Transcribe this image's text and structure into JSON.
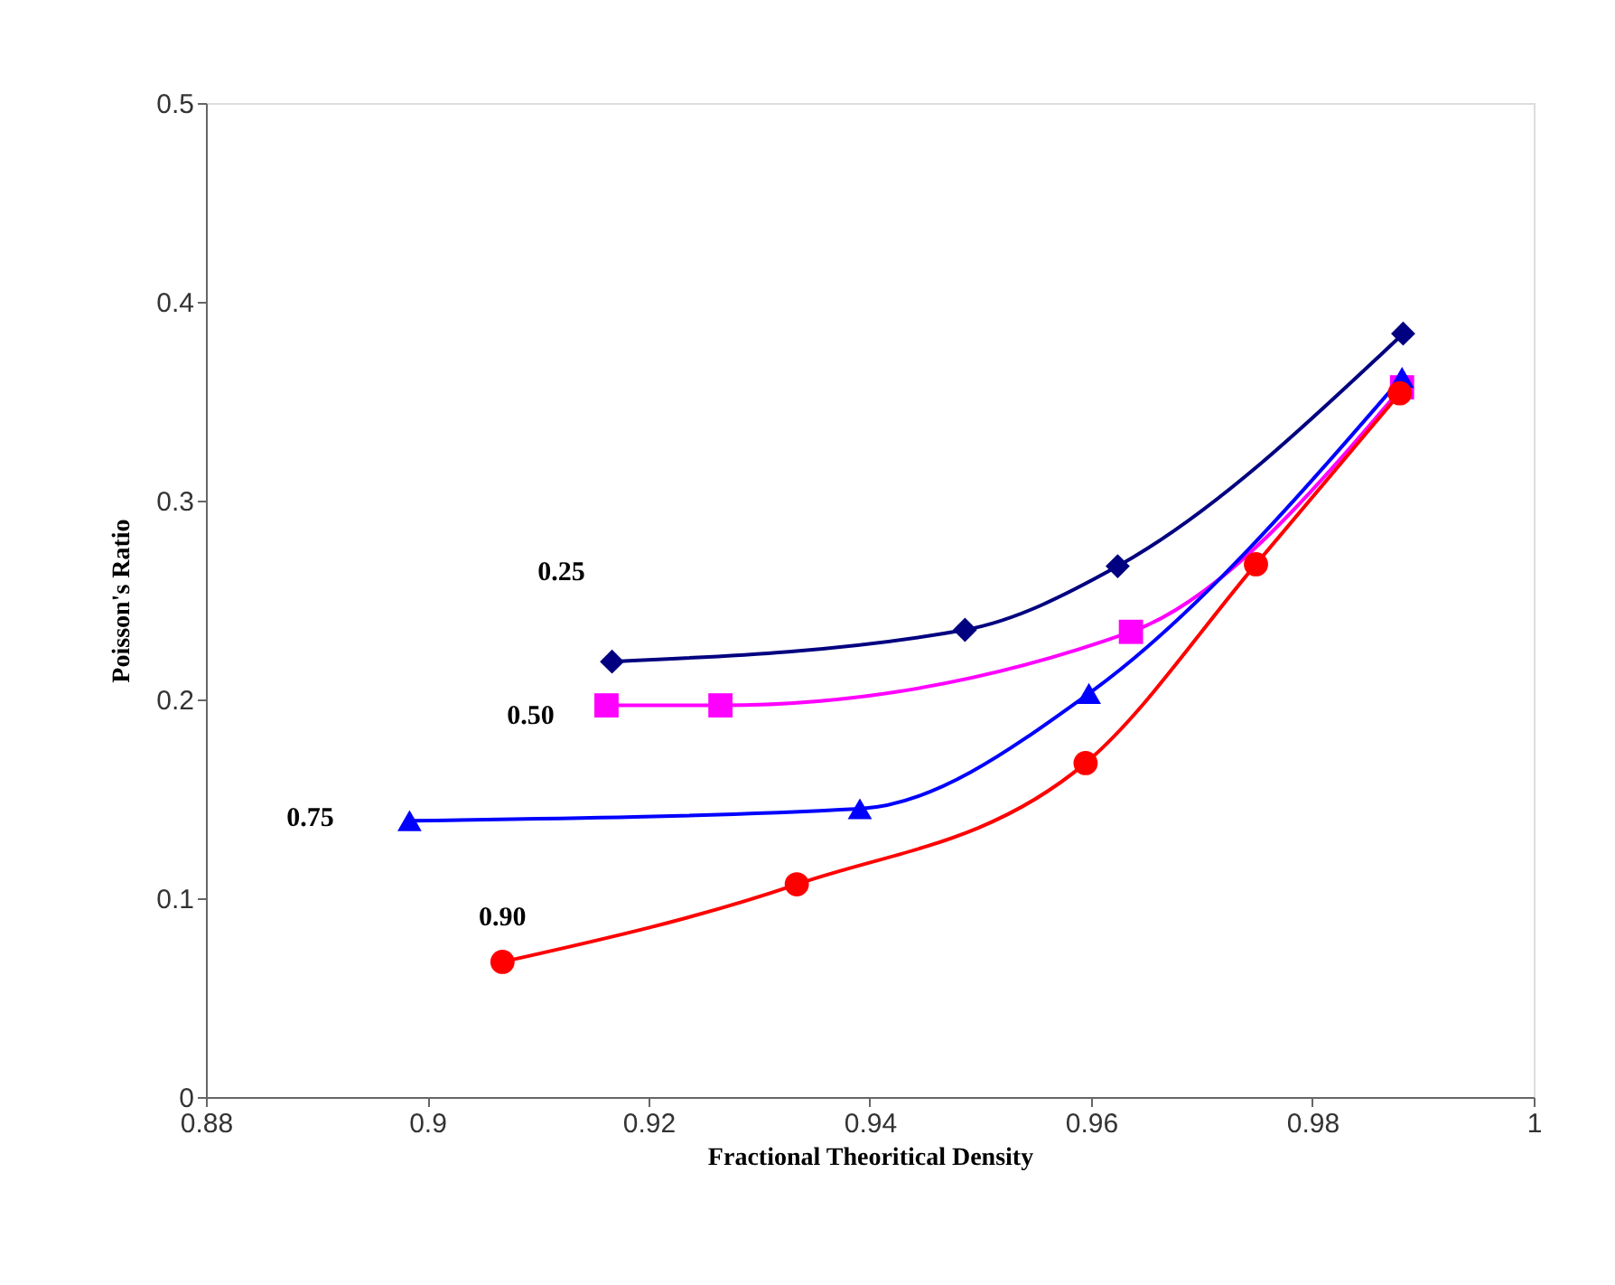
{
  "chart_data": {
    "type": "line",
    "xlabel": "Fractional Theoritical Density",
    "ylabel": "Poisson's Ratio",
    "xlim": [
      0.88,
      1
    ],
    "ylim": [
      0,
      0.5
    ],
    "xticks": [
      0.88,
      0.9,
      0.92,
      0.94,
      0.96,
      0.98,
      1
    ],
    "yticks": [
      0,
      0.1,
      0.2,
      0.3,
      0.4,
      0.5
    ],
    "grid": false,
    "legend": false,
    "line_style": "solid",
    "series": [
      {
        "name": "0.25",
        "color": "#000080",
        "marker": "diamond",
        "x": [
          0.9167,
          0.9486,
          0.9624,
          0.9882
        ],
        "values": [
          0.219,
          0.235,
          0.267,
          0.384
        ]
      },
      {
        "name": "0.50",
        "color": "#ff00ff",
        "marker": "square",
        "x": [
          0.9162,
          0.9265,
          0.9636,
          0.9881
        ],
        "values": [
          0.197,
          0.197,
          0.234,
          0.357
        ]
      },
      {
        "name": "0.75",
        "color": "#0000ff",
        "marker": "triangle",
        "x": [
          0.8984,
          0.9391,
          0.9598,
          0.9881
        ],
        "values": [
          0.139,
          0.145,
          0.203,
          0.362
        ]
      },
      {
        "name": "0.90",
        "color": "#ff0000",
        "marker": "circle",
        "x": [
          0.9068,
          0.9334,
          0.9595,
          0.9749,
          0.9879
        ],
        "values": [
          0.068,
          0.107,
          0.168,
          0.268,
          0.354
        ]
      }
    ]
  }
}
